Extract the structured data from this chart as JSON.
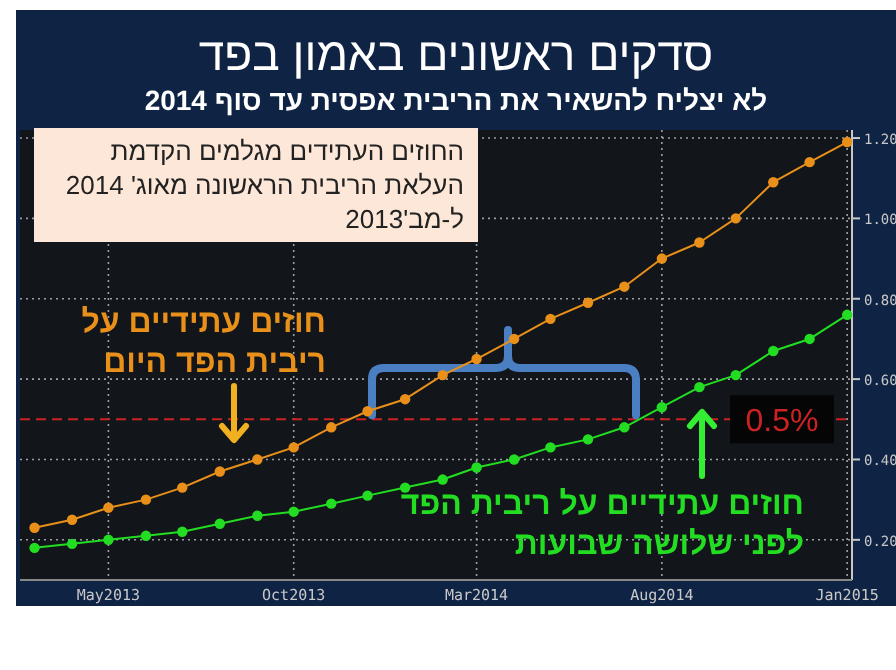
{
  "chart_data": {
    "type": "line",
    "title": "סדקים ראשונים באמון בפד",
    "subtitle": "לא יצליח להשאיר את הריבית אפסית עד סוף 2014",
    "annotations": [
      "החוזים העתידים מגלמים הקדמת העלאת הריבית הראשונה מאוג' 2014 ל-מב'2013"
    ],
    "x": [
      "2013-03",
      "2013-04",
      "2013-05",
      "2013-06",
      "2013-07",
      "2013-08",
      "2013-09",
      "2013-10",
      "2013-11",
      "2013-12",
      "2014-01",
      "2014-02",
      "2014-03",
      "2014-04",
      "2014-05",
      "2014-06",
      "2014-07",
      "2014-08",
      "2014-09",
      "2014-10",
      "2014-11",
      "2014-12",
      "2015-01"
    ],
    "series": [
      {
        "name": "חוזים עתידיים על ריבית הפד היום",
        "color": "#e8901a",
        "values": [
          0.23,
          0.25,
          0.28,
          0.3,
          0.33,
          0.37,
          0.4,
          0.43,
          0.48,
          0.52,
          0.55,
          0.61,
          0.65,
          0.7,
          0.75,
          0.79,
          0.83,
          0.9,
          0.94,
          1.0,
          1.09,
          1.14,
          1.19
        ]
      },
      {
        "name": "חוזים עתידיים על ריבית הפד לפני שלושה שבועות",
        "color": "#22dd22",
        "values": [
          0.18,
          0.19,
          0.2,
          0.21,
          0.22,
          0.24,
          0.26,
          0.27,
          0.29,
          0.31,
          0.33,
          0.35,
          0.38,
          0.4,
          0.43,
          0.45,
          0.48,
          0.53,
          0.58,
          0.61,
          0.67,
          0.7,
          0.76
        ]
      }
    ],
    "xlim": [
      "2013-02-17",
      "2015-01-05"
    ],
    "xticks": [
      {
        "value": "2013-05",
        "label": "May2013"
      },
      {
        "value": "2013-10",
        "label": "Oct2013"
      },
      {
        "value": "2014-03",
        "label": "Mar2014"
      },
      {
        "value": "2014-08",
        "label": "Aug2014"
      },
      {
        "value": "2015-01",
        "label": "Jan2015"
      }
    ],
    "ylim": [
      0.1,
      1.22
    ],
    "yticks": [
      {
        "value": 0.2,
        "label": "0.20"
      },
      {
        "value": 0.4,
        "label": "0.40"
      },
      {
        "value": 0.6,
        "label": "0.60"
      },
      {
        "value": 0.8,
        "label": "0.80"
      },
      {
        "value": 1.0,
        "label": "1.00"
      },
      {
        "value": 1.2,
        "label": "1.20"
      }
    ],
    "ref_lines": [
      {
        "axis": "y",
        "value": 0.5,
        "label": "0.5%",
        "color": "#cc2222",
        "line_style": "dashed"
      }
    ],
    "grid": true,
    "marker": "circle",
    "line_style": "solid"
  }
}
